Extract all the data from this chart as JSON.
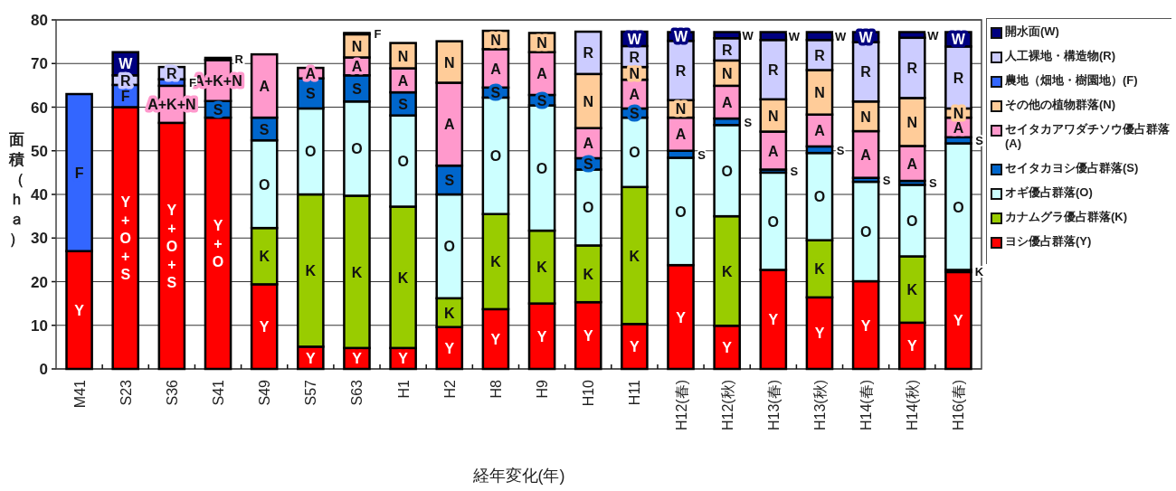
{
  "chart_data": {
    "type": "bar",
    "stacked": true,
    "xlabel": "経年変化(年)",
    "ylabel": "面積（ｈａ）",
    "ylim": [
      0,
      80
    ],
    "yticks": [
      0,
      10,
      20,
      30,
      40,
      50,
      60,
      70,
      80
    ],
    "grid": "y",
    "legend": "right",
    "categories": [
      "M41",
      "S23",
      "S36",
      "S41",
      "S49",
      "S57",
      "S63",
      "H1",
      "H2",
      "H8",
      "H9",
      "H10",
      "H11",
      "H12(春)",
      "H12(秋)",
      "H13(春)",
      "H13(秋)",
      "H14(春)",
      "H14(秋)",
      "H16(春)"
    ],
    "series": [
      {
        "name": "ヨシ優占群落(Y)",
        "color": "#ff0000",
        "values": [
          27,
          60,
          56.4,
          57.6,
          19.4,
          5.1,
          4.8,
          4.8,
          9.6,
          13.7,
          15.0,
          15.3,
          10.3,
          23.8,
          9.9,
          22.7,
          16.4,
          20.1,
          10.6,
          22.2
        ],
        "value_labels": [
          "Y",
          "Y+O+S",
          "Y+O+S",
          "Y+O",
          "Y",
          "Y",
          "Y",
          "Y",
          "Y",
          "Y",
          "Y",
          "Y",
          "Y",
          "Y",
          "Y",
          "Y",
          "Y",
          "Y",
          "Y",
          "Y"
        ]
      },
      {
        "name": "カナムグラ優占群落(K)",
        "color": "#99cc00",
        "values": [
          null,
          null,
          null,
          null,
          12.9,
          34.9,
          34.9,
          32.4,
          6.6,
          21.8,
          16.7,
          13.0,
          31.4,
          null,
          25.1,
          null,
          13.1,
          null,
          15.2,
          0.5
        ],
        "value_labels": [
          null,
          null,
          null,
          null,
          "K",
          "K",
          "K",
          "K",
          "K",
          "K",
          "K",
          "K",
          "K",
          null,
          "K",
          null,
          "K",
          null,
          "K",
          "K"
        ]
      },
      {
        "name": "オギ優占群落(O)",
        "color": "#ccffff",
        "values": [
          null,
          null,
          null,
          null,
          20.1,
          19.7,
          21.6,
          20.9,
          23.8,
          26.7,
          28.7,
          17.4,
          15.9,
          24.6,
          20.9,
          22.3,
          20.0,
          22.8,
          16.4,
          29.0
        ],
        "value_labels": [
          null,
          null,
          null,
          null,
          "O",
          "O",
          "O",
          "O",
          "O",
          "O",
          "O",
          "O",
          "O",
          "O",
          "O",
          "O",
          "O",
          "O",
          "O",
          "O"
        ]
      },
      {
        "name": "セイタカヨシ優占群落(S)",
        "color": "#0066cc",
        "values": [
          null,
          null,
          null,
          3.8,
          5.2,
          6.9,
          6.0,
          5.3,
          6.6,
          2.3,
          2.4,
          2.6,
          2.1,
          1.6,
          1.5,
          0.7,
          1.5,
          0.9,
          0.9,
          1.4
        ],
        "value_labels": [
          null,
          null,
          null,
          "S",
          "S",
          "S",
          "S",
          "S",
          "S",
          "S",
          "S",
          "S",
          "S",
          "S",
          "S",
          "S",
          "S",
          "S",
          "S",
          "S"
        ]
      },
      {
        "name": "セイタカアワダチソウ優占群落(A)",
        "color": "#ff99cc",
        "values": [
          null,
          null,
          8.5,
          9.4,
          14.5,
          2.4,
          4.1,
          5.5,
          19.0,
          8.8,
          9.8,
          6.9,
          6.6,
          7.6,
          7.5,
          8.7,
          7.3,
          10.7,
          8.0,
          4.5
        ],
        "value_labels": [
          null,
          null,
          "A+K+N",
          "A+K+N",
          "A",
          "A",
          "A",
          "A",
          "A",
          "A",
          "A",
          "A",
          "A",
          "A",
          "A",
          "A",
          "A",
          "A",
          "A",
          "A"
        ]
      },
      {
        "name": "その他の植物群落(N)",
        "color": "#ffcc99",
        "values": [
          null,
          null,
          null,
          null,
          null,
          null,
          5.3,
          5.8,
          9.5,
          4.2,
          4.4,
          12.4,
          2.9,
          4.0,
          5.8,
          7.4,
          10.2,
          6.8,
          11.0,
          2.1
        ],
        "value_labels": [
          null,
          null,
          null,
          null,
          null,
          null,
          "N",
          "N",
          "N",
          "N",
          "N",
          "N",
          "N",
          "N",
          "N",
          "N",
          "N",
          "N",
          "N",
          "N"
        ]
      },
      {
        "name": "農地（畑地・樹園地）(F)",
        "color": "#3366ff",
        "values": [
          36,
          5.1,
          1.5,
          null,
          null,
          null,
          0.3,
          null,
          null,
          null,
          null,
          null,
          null,
          null,
          null,
          null,
          null,
          null,
          null,
          null
        ],
        "value_labels": [
          "F",
          "F",
          "F",
          null,
          null,
          null,
          "F",
          null,
          null,
          null,
          null,
          null,
          null,
          null,
          null,
          null,
          null,
          null,
          null,
          null
        ]
      },
      {
        "name": "人工裸地・構造物(R)",
        "color": "#ccccff",
        "values": [
          null,
          2.2,
          2.8,
          0.5,
          null,
          null,
          null,
          null,
          null,
          null,
          null,
          9.7,
          4.8,
          13.6,
          5.1,
          13.6,
          6.9,
          13.6,
          13.8,
          14.2
        ],
        "value_labels": [
          null,
          "R",
          "R",
          "R",
          null,
          null,
          null,
          null,
          null,
          null,
          null,
          "R",
          "R",
          "R",
          "R",
          "R",
          "R",
          "R",
          "R",
          "R"
        ]
      },
      {
        "name": "開水面(W)",
        "color": "#000080",
        "values": [
          null,
          5.3,
          null,
          null,
          null,
          null,
          null,
          null,
          null,
          null,
          null,
          null,
          3.3,
          2.0,
          1.4,
          1.8,
          1.8,
          2.3,
          1.3,
          3.3
        ],
        "value_labels": [
          null,
          "W",
          null,
          null,
          null,
          null,
          null,
          null,
          null,
          null,
          null,
          null,
          "W",
          "W",
          "W",
          "W",
          "W",
          "W",
          "W",
          "W"
        ]
      }
    ]
  }
}
